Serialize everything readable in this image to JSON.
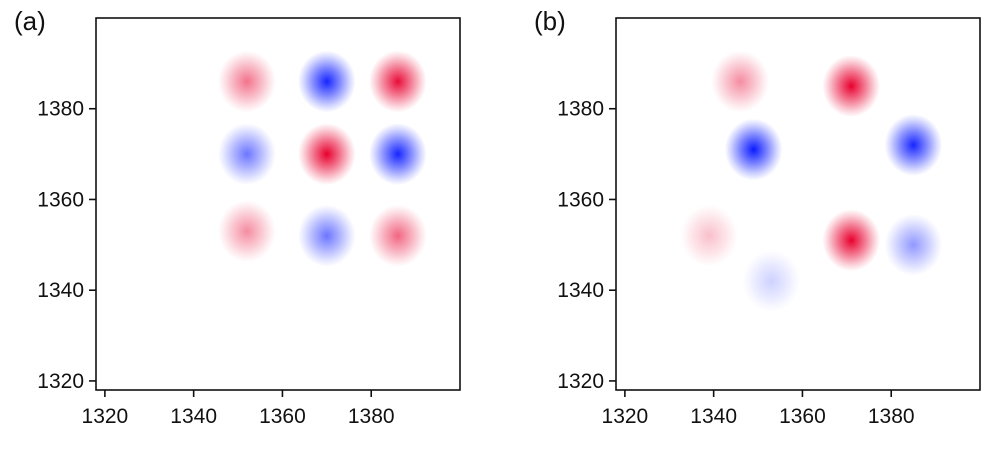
{
  "chart_data": [
    {
      "type": "heatmap",
      "panel_label": "(a)",
      "xlim": [
        1318,
        1400
      ],
      "ylim": [
        1318,
        1400
      ],
      "xticks": [
        "1320",
        "1340",
        "1360",
        "1380"
      ],
      "yticks": [
        "1320",
        "1340",
        "1360",
        "1380"
      ],
      "peaks": [
        {
          "x": 1352,
          "y": 1386,
          "sign": "positive",
          "intensity": 0.55
        },
        {
          "x": 1370,
          "y": 1386,
          "sign": "negative",
          "intensity": 0.95
        },
        {
          "x": 1386,
          "y": 1386,
          "sign": "positive",
          "intensity": 0.95
        },
        {
          "x": 1352,
          "y": 1370,
          "sign": "negative",
          "intensity": 0.6
        },
        {
          "x": 1370,
          "y": 1370,
          "sign": "positive",
          "intensity": 1.0
        },
        {
          "x": 1386,
          "y": 1370,
          "sign": "negative",
          "intensity": 0.95
        },
        {
          "x": 1352,
          "y": 1353,
          "sign": "positive",
          "intensity": 0.45
        },
        {
          "x": 1370,
          "y": 1352,
          "sign": "negative",
          "intensity": 0.6
        },
        {
          "x": 1386,
          "y": 1352,
          "sign": "positive",
          "intensity": 0.6
        }
      ]
    },
    {
      "type": "heatmap",
      "panel_label": "(b)",
      "xlim": [
        1318,
        1400
      ],
      "ylim": [
        1318,
        1400
      ],
      "xticks": [
        "1320",
        "1340",
        "1360",
        "1380"
      ],
      "yticks": [
        "1320",
        "1340",
        "1360",
        "1380"
      ],
      "peaks": [
        {
          "x": 1346,
          "y": 1386,
          "sign": "positive",
          "intensity": 0.45
        },
        {
          "x": 1371,
          "y": 1385,
          "sign": "positive",
          "intensity": 1.0
        },
        {
          "x": 1349,
          "y": 1371,
          "sign": "negative",
          "intensity": 1.0
        },
        {
          "x": 1385,
          "y": 1372,
          "sign": "negative",
          "intensity": 0.95
        },
        {
          "x": 1371,
          "y": 1351,
          "sign": "positive",
          "intensity": 1.0
        },
        {
          "x": 1385,
          "y": 1350,
          "sign": "negative",
          "intensity": 0.45
        },
        {
          "x": 1339,
          "y": 1352,
          "sign": "positive",
          "intensity": 0.25
        },
        {
          "x": 1353,
          "y": 1342,
          "sign": "negative",
          "intensity": 0.2
        }
      ]
    }
  ],
  "colors": {
    "positive": "#e8002e",
    "negative": "#0a1aff",
    "axis": "#111111"
  }
}
